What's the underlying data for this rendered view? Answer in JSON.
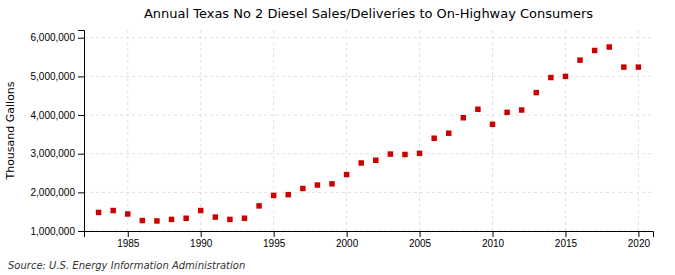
{
  "chart_data": {
    "type": "scatter",
    "title": "Annual Texas No 2 Diesel Sales/Deliveries to On-Highway Consumers",
    "ylabel": "Thousand Gallons",
    "annotations": [
      "Source: U.S. Energy Information Administration"
    ],
    "x": [
      1983,
      1984,
      1985,
      1986,
      1987,
      1988,
      1989,
      1990,
      1991,
      1992,
      1993,
      1994,
      1995,
      1996,
      1997,
      1998,
      1999,
      2000,
      2001,
      2002,
      2003,
      2004,
      2005,
      2006,
      2007,
      2008,
      2009,
      2010,
      2011,
      2012,
      2013,
      2014,
      2015,
      2016,
      2017,
      2018,
      2019,
      2020
    ],
    "values": [
      1480000,
      1530000,
      1440000,
      1270000,
      1260000,
      1300000,
      1330000,
      1530000,
      1360000,
      1300000,
      1330000,
      1650000,
      1920000,
      1940000,
      2100000,
      2190000,
      2220000,
      2460000,
      2760000,
      2830000,
      2990000,
      2980000,
      3010000,
      3400000,
      3530000,
      3930000,
      4150000,
      3760000,
      4070000,
      4130000,
      4580000,
      4970000,
      5000000,
      5420000,
      5670000,
      5760000,
      5240000,
      5240000
    ],
    "color": "#cc0000",
    "marker": "square",
    "xlim": [
      1982,
      2021
    ],
    "ylim": [
      1000000,
      6200000
    ],
    "xticks": [
      1985,
      1990,
      1995,
      2000,
      2005,
      2010,
      2015,
      2020
    ],
    "yticks": [
      {
        "value": 1000000,
        "label": "1,000,000"
      },
      {
        "value": 2000000,
        "label": "2,000,000"
      },
      {
        "value": 3000000,
        "label": "3,000,000"
      },
      {
        "value": 4000000,
        "label": "4,000,000"
      },
      {
        "value": 5000000,
        "label": "5,000,000"
      },
      {
        "value": 6000000,
        "label": "6,000,000"
      }
    ],
    "grid": true
  }
}
